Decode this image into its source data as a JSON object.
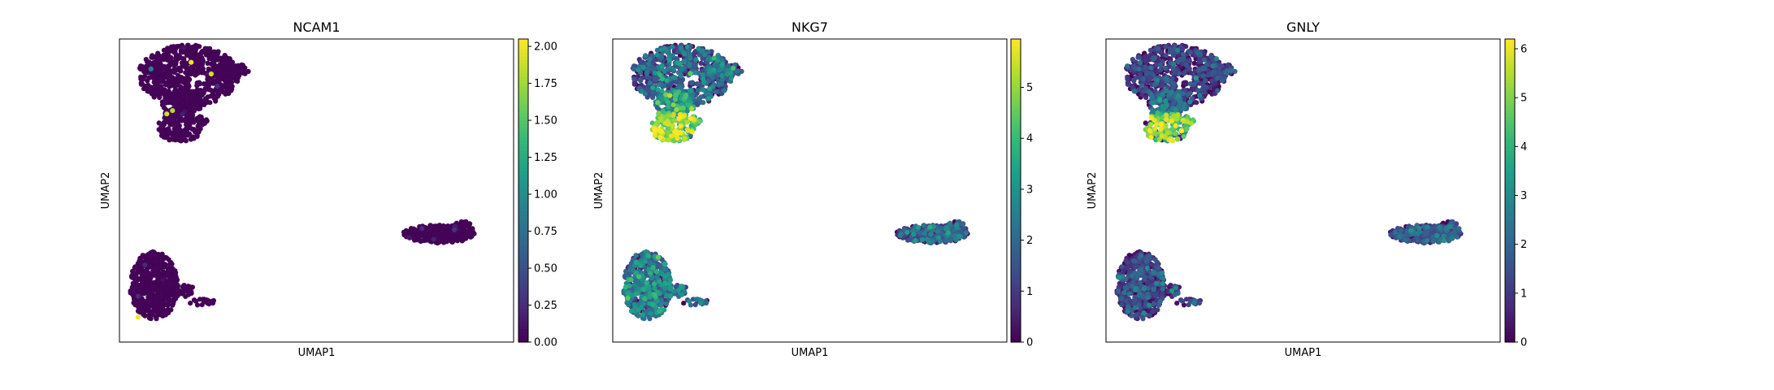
{
  "chart_data": [
    {
      "type": "scatter",
      "title": "NCAM1",
      "xlabel": "UMAP1",
      "ylabel": "UMAP2",
      "colormap": "viridis",
      "colorbar": {
        "range": [
          0,
          2.05
        ],
        "ticks": [
          "0.00",
          "0.25",
          "0.50",
          "0.75",
          "1.00",
          "1.25",
          "1.50",
          "1.75",
          "2.00"
        ]
      },
      "clusters": [
        {
          "name": "upper-left",
          "points_approx": 900,
          "expression_approx": 0.01,
          "highlights": [
            [
              -5.0,
              8.8,
              2.0
            ],
            [
              -3.6,
              8.1,
              1.9
            ],
            [
              -6.7,
              5.7,
              1.9
            ],
            [
              -6.3,
              5.9,
              1.8
            ],
            [
              -7.8,
              8.4,
              0.9
            ]
          ]
        },
        {
          "name": "lower-left",
          "points_approx": 500,
          "expression_approx": 0.01,
          "highlights": [
            [
              -8.7,
              -6.5,
              2.0
            ]
          ]
        },
        {
          "name": "right",
          "points_approx": 280,
          "expression_approx": 0.03,
          "highlights": []
        }
      ],
      "grid": false,
      "legend": "colorbar-right"
    },
    {
      "type": "scatter",
      "title": "NKG7",
      "xlabel": "UMAP1",
      "ylabel": "UMAP2",
      "colormap": "viridis",
      "colorbar": {
        "range": [
          0,
          5.95
        ],
        "ticks": [
          "0",
          "1",
          "2",
          "3",
          "4",
          "5"
        ]
      },
      "clusters": [
        {
          "name": "upper-left top",
          "points_approx": 700,
          "expression_approx": 1.8
        },
        {
          "name": "upper-left bottom",
          "points_approx": 250,
          "expression_approx": 4.6
        },
        {
          "name": "lower-left",
          "points_approx": 500,
          "expression_approx": 2.2
        },
        {
          "name": "right",
          "points_approx": 280,
          "expression_approx": 1.6
        }
      ],
      "grid": false,
      "legend": "colorbar-right"
    },
    {
      "type": "scatter",
      "title": "GNLY",
      "xlabel": "UMAP1",
      "ylabel": "UMAP2",
      "colormap": "viridis",
      "colorbar": {
        "range": [
          0,
          6.2
        ],
        "ticks": [
          "0",
          "1",
          "2",
          "3",
          "4",
          "5",
          "6"
        ]
      },
      "clusters": [
        {
          "name": "upper-left top",
          "points_approx": 700,
          "expression_approx": 0.9
        },
        {
          "name": "upper-left bottom",
          "points_approx": 250,
          "expression_approx": 4.7
        },
        {
          "name": "lower-left",
          "points_approx": 500,
          "expression_approx": 1.2
        },
        {
          "name": "right",
          "points_approx": 280,
          "expression_approx": 1.4
        }
      ],
      "grid": false,
      "legend": "colorbar-right"
    }
  ]
}
